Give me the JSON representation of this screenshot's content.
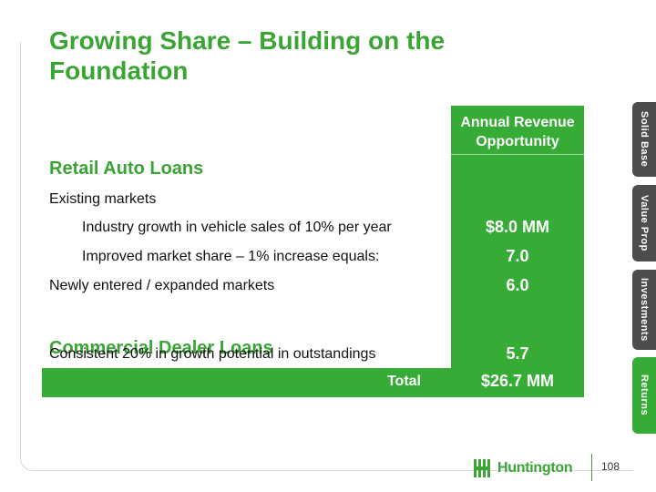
{
  "slide": {
    "title": "Growing Share – Building on the Foundation",
    "page_number": "108"
  },
  "table": {
    "column_header": "Annual Revenue Opportunity",
    "sections": [
      {
        "heading": "Retail Auto Loans",
        "rows": [
          {
            "label": "Existing markets",
            "value": ""
          },
          {
            "label": "Industry growth in vehicle sales of 10% per year",
            "value": "$8.0 MM"
          },
          {
            "label": "Improved market share – 1% increase equals:",
            "value": "7.0"
          },
          {
            "label": "Newly entered / expanded markets",
            "value": "6.0"
          }
        ]
      },
      {
        "heading": "Commercial Dealer Loans",
        "rows": [
          {
            "label": "Consistent 20% in growth potential in outstandings",
            "value": "5.7"
          }
        ]
      }
    ],
    "total_label": "Total",
    "total_value": "$26.7 MM"
  },
  "side_tabs": [
    {
      "label": "Solid Base",
      "active": false
    },
    {
      "label": "Value Prop",
      "active": false
    },
    {
      "label": "Investments",
      "active": false
    },
    {
      "label": "Returns",
      "active": true
    }
  ],
  "logo": {
    "text": "Huntington"
  },
  "colors": {
    "brand_green": "#36ab36",
    "title_green": "#3aa535",
    "tab_dark": "#4d4d4d"
  }
}
